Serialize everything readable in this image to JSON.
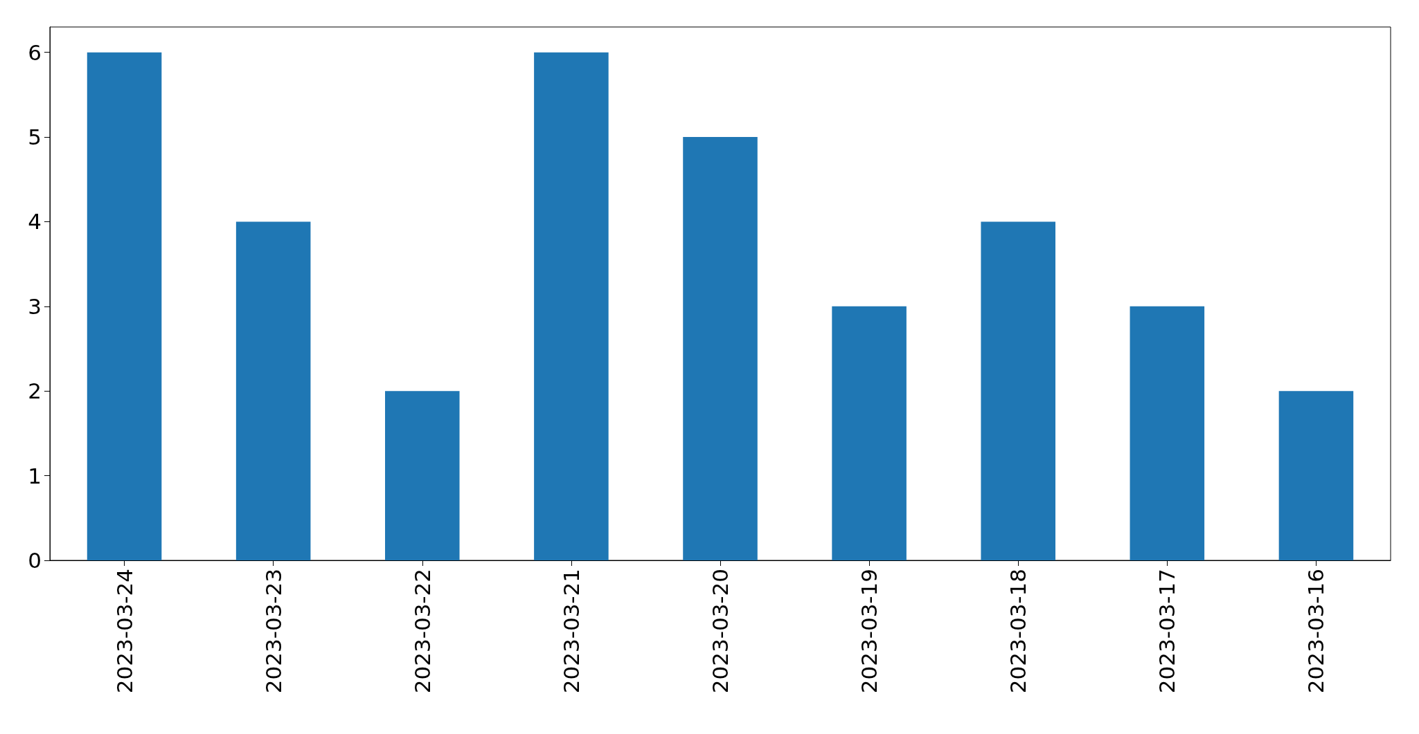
{
  "chart_data": {
    "type": "bar",
    "categories": [
      "2023-03-24",
      "2023-03-23",
      "2023-03-22",
      "2023-03-21",
      "2023-03-20",
      "2023-03-19",
      "2023-03-18",
      "2023-03-17",
      "2023-03-16"
    ],
    "values": [
      6,
      4,
      2,
      6,
      5,
      3,
      4,
      3,
      2
    ],
    "color": "#1f77b4",
    "ylim": [
      0,
      6.3
    ],
    "yticks": [
      0,
      1,
      2,
      3,
      4,
      5,
      6
    ],
    "grid": false
  }
}
